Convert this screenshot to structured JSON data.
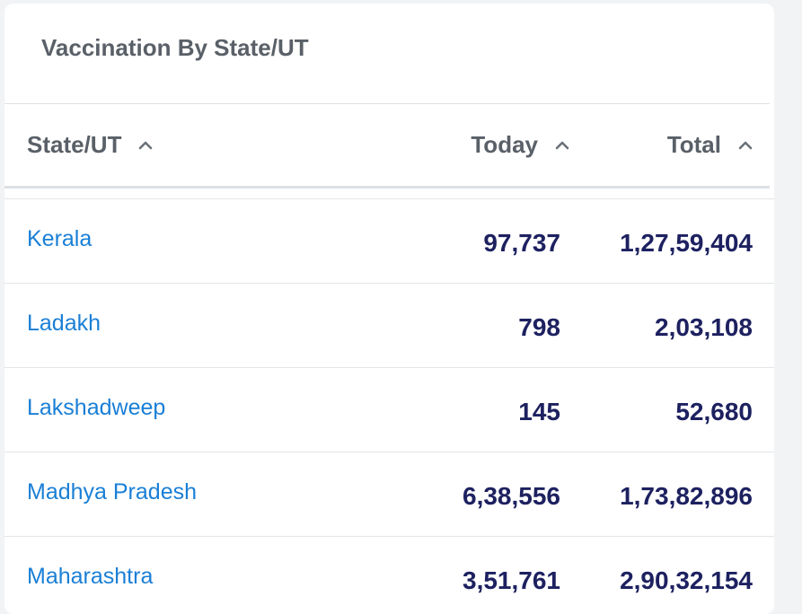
{
  "card": {
    "title": "Vaccination By State/UT"
  },
  "table": {
    "columns": [
      {
        "label": "State/UT",
        "sort_icon": "chevron-up-icon"
      },
      {
        "label": "Today",
        "sort_icon": "chevron-up-icon"
      },
      {
        "label": "Total",
        "sort_icon": "chevron-up-icon"
      }
    ],
    "rows": [
      {
        "state": "Kerala",
        "today": "97,737",
        "total": "1,27,59,404"
      },
      {
        "state": "Ladakh",
        "today": "798",
        "total": "2,03,108"
      },
      {
        "state": "Lakshadweep",
        "today": "145",
        "total": "52,680"
      },
      {
        "state": "Madhya Pradesh",
        "today": "6,38,556",
        "total": "1,73,82,896"
      },
      {
        "state": "Maharashtra",
        "today": "3,51,761",
        "total": "2,90,32,154"
      }
    ]
  },
  "colors": {
    "link": "#1a7fd6",
    "number": "#1d2160",
    "header_text": "#5a6068",
    "divider": "#e3e5e8"
  }
}
